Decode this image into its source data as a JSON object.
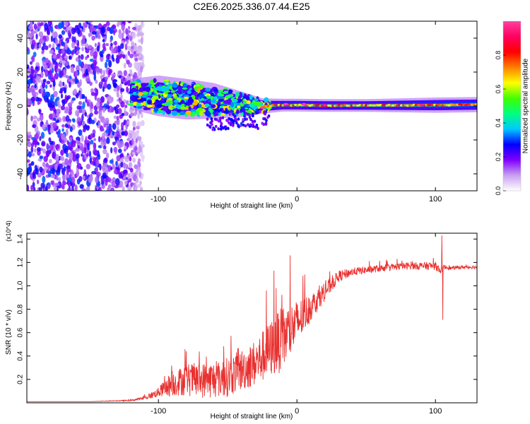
{
  "title": "C2E6.2025.336.07.44.E25",
  "chart_data": [
    {
      "type": "heatmap",
      "title": "C2E6.2025.336.07.44.E25",
      "xlabel": "Height of straight line (km)",
      "ylabel": "Frequency (Hz)",
      "xlim": [
        -195,
        130
      ],
      "ylim": [
        -50,
        50
      ],
      "xticks": [
        -100,
        0,
        100
      ],
      "yticks": [
        -40,
        -20,
        0,
        20,
        40
      ],
      "colorbar": {
        "label": "Normalized spectral amplitude",
        "range": [
          0,
          1
        ],
        "ticks": [
          "0.0",
          "0.2",
          "0.4",
          "0.6",
          "0.8"
        ],
        "colors": [
          "#ffffff",
          "#c8a0f0",
          "#8000ff",
          "#0000ff",
          "#00c8ff",
          "#00ff80",
          "#40ff00",
          "#ffff00",
          "#ff8000",
          "#ff0000",
          "#ff0060",
          "#ff40a0"
        ]
      },
      "ridge": {
        "x": [
          -120,
          -100,
          -80,
          -60,
          -40,
          -25,
          -10,
          0,
          20,
          50,
          100,
          130
        ],
        "y": [
          7,
          6,
          4,
          3,
          1,
          0,
          0.5,
          0.5,
          0.3,
          0.3,
          0.5,
          0.8
        ],
        "halfwidth": [
          6,
          8,
          8,
          7,
          5,
          3,
          2.5,
          2.5,
          2.5,
          2.5,
          3,
          3
        ]
      },
      "noise_region_x": [
        -195,
        -115
      ],
      "noise_level": "high",
      "peak_points": [
        {
          "x": -25,
          "y": -1,
          "value": 1.0
        },
        {
          "x": -8,
          "y": 1,
          "value": 1.0
        },
        {
          "x": 5,
          "y": 1,
          "value": 1.0
        },
        {
          "x": 20,
          "y": 0.5,
          "value": 0.95
        },
        {
          "x": 90,
          "y": 0.5,
          "value": 0.95
        }
      ]
    },
    {
      "type": "line",
      "xlabel": "Height of straight line (km)",
      "ylabel": "SNR (10 * v/v)",
      "multiplier": "(x10^4)",
      "xlim": [
        -195,
        130
      ],
      "ylim": [
        0,
        1.45
      ],
      "xticks": [
        -100,
        0,
        100
      ],
      "yticks": [
        0.2,
        0.4,
        0.6,
        0.8,
        1.0,
        1.2,
        1.4
      ],
      "color": "#e8312f",
      "series": [
        {
          "name": "SNR",
          "x": [
            -195,
            -150,
            -120,
            -110,
            -100,
            -92,
            -85,
            -80,
            -70,
            -60,
            -50,
            -40,
            -30,
            -20,
            -10,
            0,
            10,
            20,
            30,
            40,
            60,
            80,
            100,
            104,
            106,
            108,
            110,
            120,
            130
          ],
          "y": [
            0.01,
            0.01,
            0.02,
            0.04,
            0.09,
            0.15,
            0.18,
            0.2,
            0.19,
            0.2,
            0.22,
            0.28,
            0.34,
            0.45,
            0.55,
            0.68,
            0.82,
            0.95,
            1.08,
            1.12,
            1.15,
            1.17,
            1.17,
            1.13,
            1.16,
            1.16,
            1.15,
            1.16,
            1.16
          ],
          "noise": [
            0.0,
            0.0,
            0.005,
            0.015,
            0.04,
            0.1,
            0.12,
            0.14,
            0.15,
            0.16,
            0.17,
            0.18,
            0.2,
            0.24,
            0.28,
            0.2,
            0.12,
            0.08,
            0.05,
            0.035,
            0.03,
            0.03,
            0.035,
            0.03,
            0.02,
            0.02,
            0.015,
            0.015,
            0.015
          ],
          "spikes": [
            {
              "x": 104.6,
              "y": 1.43
            },
            {
              "x": 105.3,
              "y": 0.71
            },
            {
              "x": -16.5,
              "y": 1.13
            },
            {
              "x": -15,
              "y": 0.98
            },
            {
              "x": -22,
              "y": 0.96
            },
            {
              "x": -80,
              "y": 0.44
            }
          ]
        }
      ]
    }
  ]
}
